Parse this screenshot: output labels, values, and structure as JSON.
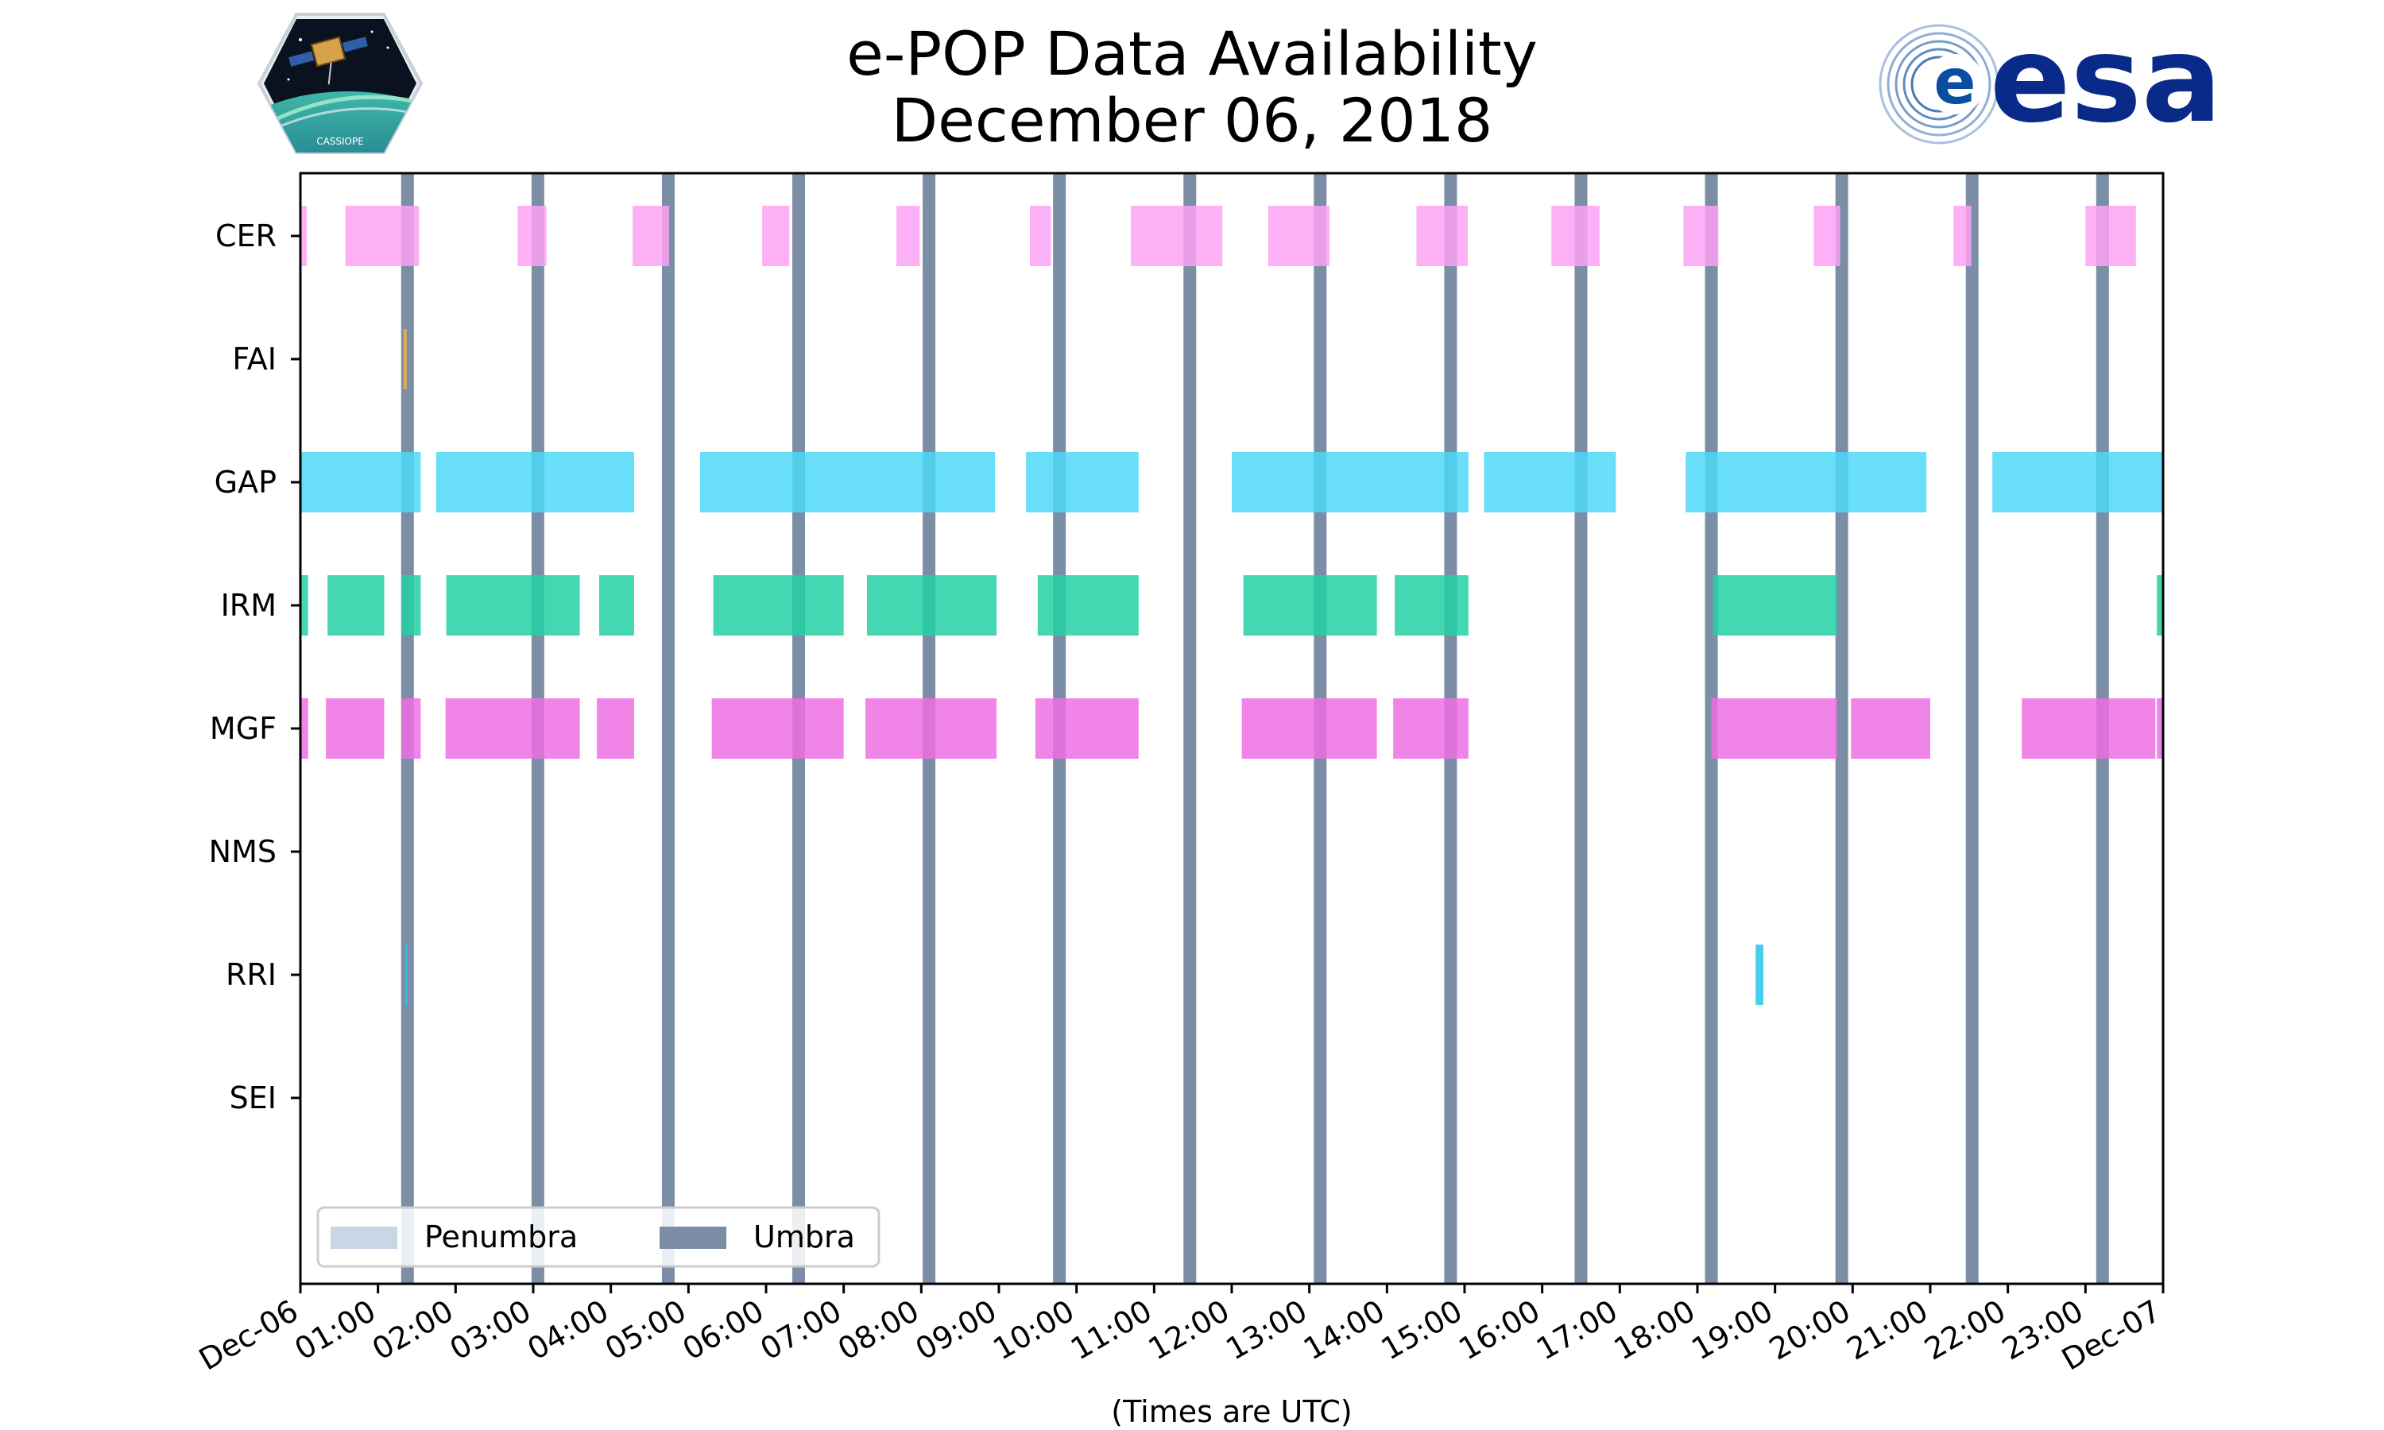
{
  "chart_data": {
    "type": "timeline",
    "title": "e-POP Data Availability",
    "subtitle": "December 06, 2018",
    "xlabel": "(Times are UTC)",
    "x_range_hours": [
      0,
      24
    ],
    "x_ticks": [
      "Dec-06",
      "01:00",
      "02:00",
      "03:00",
      "04:00",
      "05:00",
      "06:00",
      "07:00",
      "08:00",
      "09:00",
      "10:00",
      "11:00",
      "12:00",
      "13:00",
      "14:00",
      "15:00",
      "16:00",
      "17:00",
      "18:00",
      "19:00",
      "20:00",
      "21:00",
      "22:00",
      "23:00",
      "Dec-07"
    ],
    "instruments": [
      "CER",
      "FAI",
      "GAP",
      "IRM",
      "MGF",
      "NMS",
      "RRI",
      "SEI"
    ],
    "legend": {
      "location": "lower-left",
      "entries": [
        {
          "label": "Penumbra",
          "color": "#c9d6e6"
        },
        {
          "label": "Umbra",
          "color": "#7b8ea6"
        }
      ]
    },
    "umbra_hours": [
      1.38,
      3.06,
      4.74,
      6.42,
      8.1,
      9.78,
      11.46,
      13.14,
      14.82,
      16.5,
      18.18,
      19.86,
      21.54,
      23.22
    ],
    "series": [
      {
        "name": "CER",
        "color": "#fca2f3",
        "segments": [
          [
            0.0,
            0.08
          ],
          [
            0.58,
            1.53
          ],
          [
            2.8,
            3.17
          ],
          [
            4.28,
            4.75
          ],
          [
            5.95,
            6.3
          ],
          [
            7.68,
            7.98
          ],
          [
            9.4,
            9.67
          ],
          [
            10.7,
            11.88
          ],
          [
            12.47,
            13.26
          ],
          [
            14.38,
            15.04
          ],
          [
            16.12,
            16.74
          ],
          [
            17.82,
            18.27
          ],
          [
            19.5,
            19.84
          ],
          [
            21.3,
            21.53
          ],
          [
            23.0,
            23.65
          ]
        ]
      },
      {
        "name": "FAI",
        "color": "#f5b342",
        "segments": [
          [
            1.33,
            1.37
          ]
        ]
      },
      {
        "name": "GAP",
        "color": "#4dd8f7",
        "segments": [
          [
            0.0,
            1.55
          ],
          [
            1.75,
            4.3
          ],
          [
            5.15,
            8.95
          ],
          [
            9.35,
            10.8
          ],
          [
            12.0,
            15.05
          ],
          [
            15.25,
            16.95
          ],
          [
            17.85,
            20.95
          ],
          [
            21.8,
            24.0
          ]
        ]
      },
      {
        "name": "IRM",
        "color": "#22d1a3",
        "segments": [
          [
            0.0,
            0.1
          ],
          [
            0.35,
            1.08
          ],
          [
            1.3,
            1.55
          ],
          [
            1.88,
            3.6
          ],
          [
            3.85,
            4.3
          ],
          [
            5.32,
            7.0
          ],
          [
            7.3,
            8.97
          ],
          [
            9.5,
            10.8
          ],
          [
            12.15,
            13.87
          ],
          [
            14.1,
            15.05
          ],
          [
            18.2,
            19.8
          ],
          [
            23.92,
            24.0
          ]
        ]
      },
      {
        "name": "MGF",
        "color": "#ef6ee3",
        "segments": [
          [
            0.0,
            0.1
          ],
          [
            0.33,
            1.08
          ],
          [
            1.3,
            1.55
          ],
          [
            1.87,
            3.6
          ],
          [
            3.82,
            4.3
          ],
          [
            5.3,
            7.0
          ],
          [
            7.28,
            8.97
          ],
          [
            9.47,
            10.8
          ],
          [
            12.13,
            13.87
          ],
          [
            14.08,
            15.05
          ],
          [
            18.18,
            19.8
          ],
          [
            19.98,
            21.0
          ],
          [
            22.18,
            23.9
          ],
          [
            23.92,
            24.0
          ]
        ]
      },
      {
        "name": "NMS",
        "color": "#4dd8f7",
        "segments": []
      },
      {
        "name": "RRI",
        "color": "#29c4ea",
        "segments": [
          [
            1.35,
            1.38
          ],
          [
            18.75,
            18.85
          ]
        ]
      },
      {
        "name": "SEI",
        "color": "#4dd8f7",
        "segments": []
      }
    ]
  },
  "logos": {
    "left": {
      "name": "CASSIOPE",
      "text": "CASSIOPE"
    },
    "right": {
      "name": "ESA",
      "text": "esa"
    }
  }
}
